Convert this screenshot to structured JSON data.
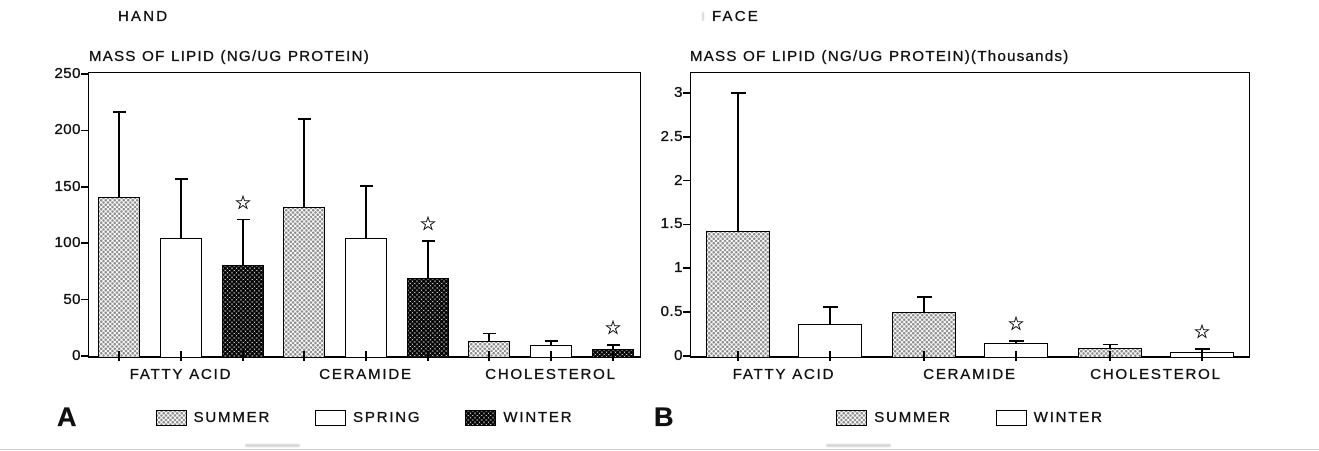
{
  "colors": {
    "ink": "#000000",
    "paper": "#ffffff",
    "pattern_light_dot": "#8f8f8f",
    "pattern_dark_dot": "#000000"
  },
  "significance_marker": "☆",
  "chart_data": [
    {
      "type": "bar",
      "panel_letter": "A",
      "header": "HAND",
      "title": "MASS OF LIPID (NG/UG PROTEIN)",
      "categories": [
        "FATTY ACID",
        "CERAMIDE",
        "CHOLESTEROL"
      ],
      "series": [
        {
          "name": "SUMMER",
          "pattern": "dotted-light",
          "values": [
            141,
            132,
            13
          ],
          "error_top": [
            216,
            210,
            20
          ],
          "significant": [
            false,
            false,
            false
          ]
        },
        {
          "name": "SPRING",
          "pattern": "white",
          "values": [
            105,
            105,
            10
          ],
          "error_top": [
            157,
            151,
            13
          ],
          "significant": [
            false,
            false,
            false
          ]
        },
        {
          "name": "WINTER",
          "pattern": "dotted-dark",
          "values": [
            81,
            69,
            6
          ],
          "error_top": [
            121,
            102,
            10
          ],
          "significant": [
            true,
            true,
            true
          ]
        }
      ],
      "ylim": [
        0,
        250
      ],
      "yticks": [
        "0",
        "50",
        "100",
        "150",
        "200",
        "250"
      ],
      "grid": "off",
      "legend_position": "bottom"
    },
    {
      "type": "bar",
      "panel_letter": "B",
      "header": "FACE",
      "title": "MASS OF LIPID (NG/UG PROTEIN)(Thousands)",
      "categories": [
        "FATTY ACID",
        "CERAMIDE",
        "CHOLESTEROL"
      ],
      "series": [
        {
          "name": "SUMMER",
          "pattern": "dotted-light",
          "values": [
            1.43,
            0.5,
            0.09
          ],
          "error_top": [
            3.0,
            0.67,
            0.13
          ],
          "significant": [
            false,
            false,
            false
          ]
        },
        {
          "name": "WINTER",
          "pattern": "white",
          "values": [
            0.37,
            0.15,
            0.05
          ],
          "error_top": [
            0.56,
            0.17,
            0.08
          ],
          "significant": [
            false,
            true,
            true
          ]
        }
      ],
      "ylim": [
        0,
        3
      ],
      "yticks": [
        "0",
        "0.5",
        "1",
        "1.5",
        "2",
        "2.5",
        "3"
      ],
      "grid": "off",
      "legend_position": "bottom"
    }
  ]
}
